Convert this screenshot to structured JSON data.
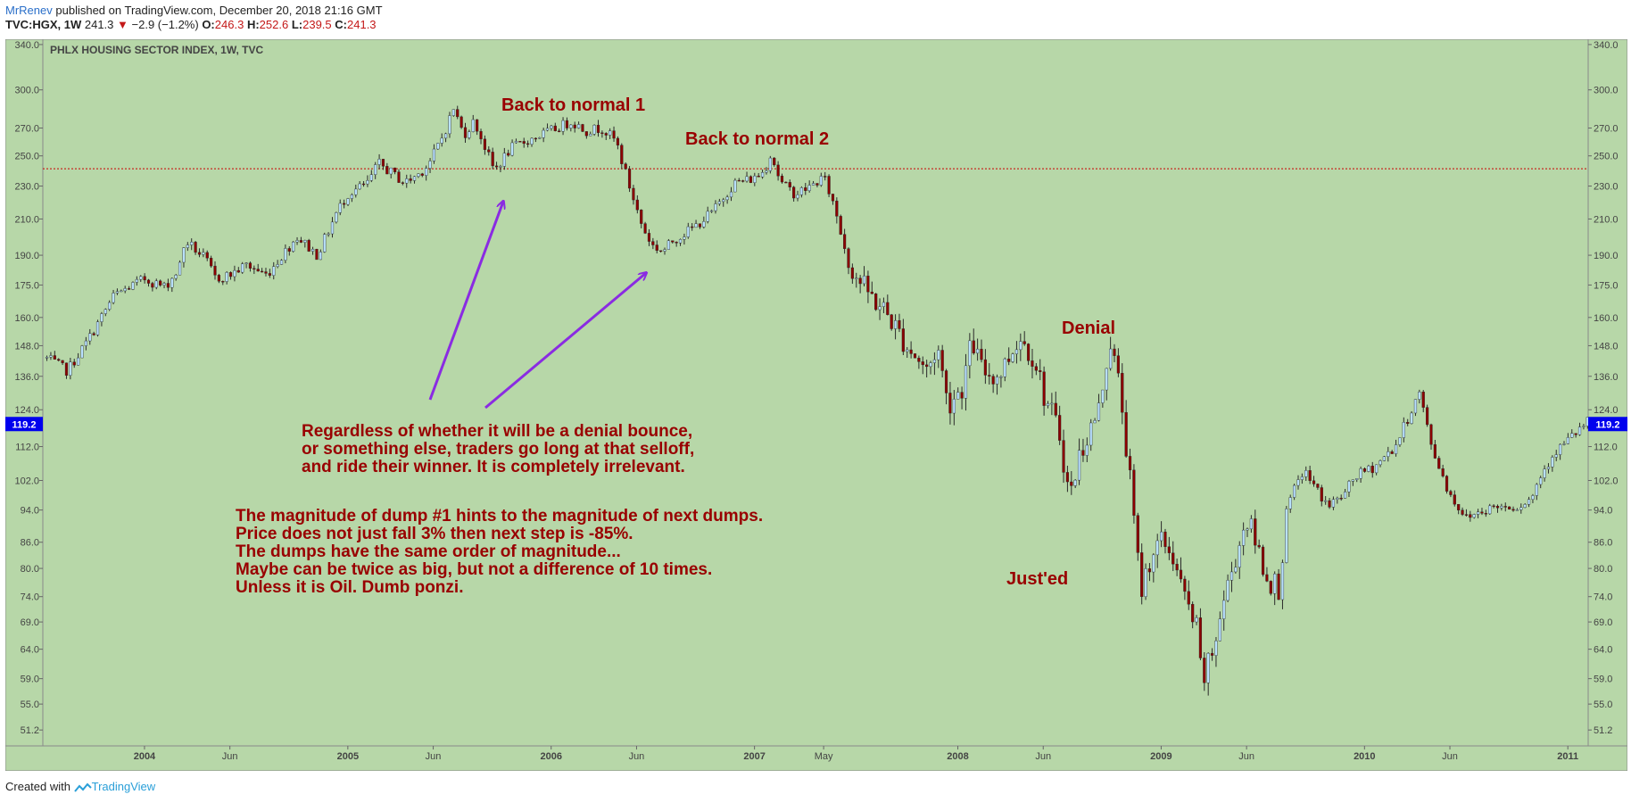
{
  "header": {
    "author": "MrRenev",
    "published": "published on TradingView.com, December 20, 2018 21:16 GMT",
    "symbol": "TVC:HGX, 1W",
    "last": "241.3",
    "change": "−2.9 (−1.2%)",
    "o_label": "O:",
    "o_value": "246.3",
    "h_label": "H:",
    "h_value": "252.6",
    "l_label": "L:",
    "l_value": "239.5",
    "c_label": "C:",
    "c_value": "241.3"
  },
  "footer": {
    "created_with": "Created with",
    "brand": "TradingView"
  },
  "colors": {
    "background": "#b7d7a8",
    "up": "#b8e0ff",
    "down": "#8b0000",
    "annotation": "#990000",
    "arrow": "#8a2be2",
    "price_line": "#cc0000",
    "badge": "#0000ee"
  },
  "chart_data": {
    "type": "candlestick",
    "title": "PHLX HOUSING SECTOR INDEX, 1W, TVC",
    "y_scale": "log",
    "ylim": [
      49,
      345
    ],
    "xlim": [
      2003.5,
      2011.1
    ],
    "y_ticks": [
      "340.0",
      "300.0",
      "270.0",
      "250.0",
      "230.0",
      "210.0",
      "190.0",
      "175.0",
      "160.0",
      "148.0",
      "136.0",
      "124.0",
      "112.0",
      "102.0",
      "94.0",
      "86.0",
      "80.0",
      "74.0",
      "69.0",
      "64.0",
      "59.0",
      "55.0",
      "51.2"
    ],
    "x_ticks": [
      {
        "label": "2004",
        "t": 2004.0
      },
      {
        "label": "Jun",
        "t": 2004.42
      },
      {
        "label": "2005",
        "t": 2005.0
      },
      {
        "label": "Jun",
        "t": 2005.42
      },
      {
        "label": "2006",
        "t": 2006.0
      },
      {
        "label": "Jun",
        "t": 2006.42
      },
      {
        "label": "2007",
        "t": 2007.0
      },
      {
        "label": "May",
        "t": 2007.34
      },
      {
        "label": "2008",
        "t": 2008.0
      },
      {
        "label": "Jun",
        "t": 2008.42
      },
      {
        "label": "2009",
        "t": 2009.0
      },
      {
        "label": "Jun",
        "t": 2009.42
      },
      {
        "label": "2010",
        "t": 2010.0
      },
      {
        "label": "Jun",
        "t": 2010.42
      },
      {
        "label": "2011",
        "t": 2011.0
      }
    ],
    "current_price": 119.2,
    "current_price_label": "119.2",
    "horizontal_line": 241.3,
    "anchors": [
      [
        2003.52,
        143
      ],
      [
        2003.62,
        138
      ],
      [
        2003.72,
        150
      ],
      [
        2003.85,
        170
      ],
      [
        2004.0,
        178
      ],
      [
        2004.1,
        174
      ],
      [
        2004.17,
        183
      ],
      [
        2004.2,
        198
      ],
      [
        2004.3,
        188
      ],
      [
        2004.35,
        178
      ],
      [
        2004.42,
        180
      ],
      [
        2004.5,
        185
      ],
      [
        2004.6,
        180
      ],
      [
        2004.75,
        200
      ],
      [
        2004.85,
        190
      ],
      [
        2004.95,
        215
      ],
      [
        2005.0,
        225
      ],
      [
        2005.1,
        232
      ],
      [
        2005.15,
        245
      ],
      [
        2005.2,
        240
      ],
      [
        2005.28,
        232
      ],
      [
        2005.35,
        238
      ],
      [
        2005.4,
        245
      ],
      [
        2005.47,
        265
      ],
      [
        2005.52,
        285
      ],
      [
        2005.57,
        265
      ],
      [
        2005.62,
        275
      ],
      [
        2005.65,
        265
      ],
      [
        2005.72,
        240
      ],
      [
        2005.8,
        255
      ],
      [
        2005.87,
        260
      ],
      [
        2006.0,
        268
      ],
      [
        2006.1,
        275
      ],
      [
        2006.17,
        268
      ],
      [
        2006.25,
        270
      ],
      [
        2006.32,
        260
      ],
      [
        2006.38,
        232
      ],
      [
        2006.45,
        205
      ],
      [
        2006.5,
        195
      ],
      [
        2006.55,
        192
      ],
      [
        2006.6,
        198
      ],
      [
        2006.7,
        205
      ],
      [
        2006.8,
        215
      ],
      [
        2006.9,
        232
      ],
      [
        2007.0,
        235
      ],
      [
        2007.05,
        240
      ],
      [
        2007.08,
        252
      ],
      [
        2007.13,
        232
      ],
      [
        2007.2,
        225
      ],
      [
        2007.28,
        230
      ],
      [
        2007.34,
        236
      ],
      [
        2007.4,
        215
      ],
      [
        2007.47,
        185
      ],
      [
        2007.55,
        172
      ],
      [
        2007.65,
        162
      ],
      [
        2007.75,
        148
      ],
      [
        2007.85,
        138
      ],
      [
        2007.9,
        148
      ],
      [
        2007.95,
        126
      ],
      [
        2008.02,
        132
      ],
      [
        2008.07,
        150
      ],
      [
        2008.12,
        138
      ],
      [
        2008.2,
        136
      ],
      [
        2008.26,
        145
      ],
      [
        2008.3,
        152
      ],
      [
        2008.38,
        143
      ],
      [
        2008.42,
        130
      ],
      [
        2008.5,
        116
      ],
      [
        2008.55,
        97
      ],
      [
        2008.6,
        110
      ],
      [
        2008.7,
        125
      ],
      [
        2008.72,
        138
      ],
      [
        2008.75,
        150
      ],
      [
        2008.8,
        130
      ],
      [
        2008.85,
        100
      ],
      [
        2008.9,
        75
      ],
      [
        2008.95,
        83
      ],
      [
        2009.0,
        86
      ],
      [
        2009.05,
        84
      ],
      [
        2009.12,
        73
      ],
      [
        2009.18,
        67
      ],
      [
        2009.2,
        58
      ],
      [
        2009.25,
        63
      ],
      [
        2009.3,
        72
      ],
      [
        2009.35,
        80
      ],
      [
        2009.42,
        92
      ],
      [
        2009.48,
        84
      ],
      [
        2009.52,
        78
      ],
      [
        2009.58,
        76
      ],
      [
        2009.62,
        95
      ],
      [
        2009.7,
        105
      ],
      [
        2009.77,
        99
      ],
      [
        2009.82,
        95
      ],
      [
        2009.9,
        98
      ],
      [
        2009.95,
        103
      ],
      [
        2010.05,
        106
      ],
      [
        2010.15,
        112
      ],
      [
        2010.27,
        130
      ],
      [
        2010.33,
        112
      ],
      [
        2010.42,
        98
      ],
      [
        2010.5,
        92
      ],
      [
        2010.58,
        94
      ],
      [
        2010.65,
        95
      ],
      [
        2010.75,
        95
      ],
      [
        2010.82,
        97
      ],
      [
        2010.87,
        104
      ],
      [
        2010.93,
        110
      ],
      [
        2011.0,
        114
      ],
      [
        2011.1,
        120
      ]
    ]
  },
  "annotations": {
    "back1": "Back to normal 1",
    "back2": "Back to normal 2",
    "denial": "Denial",
    "justed": "Just'ed",
    "block1": [
      "Regardless of whether it will be a denial bounce,",
      "or something else, traders go long at that selloff,",
      "and ride their winner. It is completely irrelevant."
    ],
    "block2": [
      "The magnitude of dump #1 hints to the magnitude of next dumps.",
      "Price does not just fall 3% then next step is -85%.",
      "The dumps have the same order of magnitude...",
      "Maybe can be twice as big, but not a difference of 10 times.",
      "Unless it is Oil. Dumb ponzi."
    ]
  }
}
